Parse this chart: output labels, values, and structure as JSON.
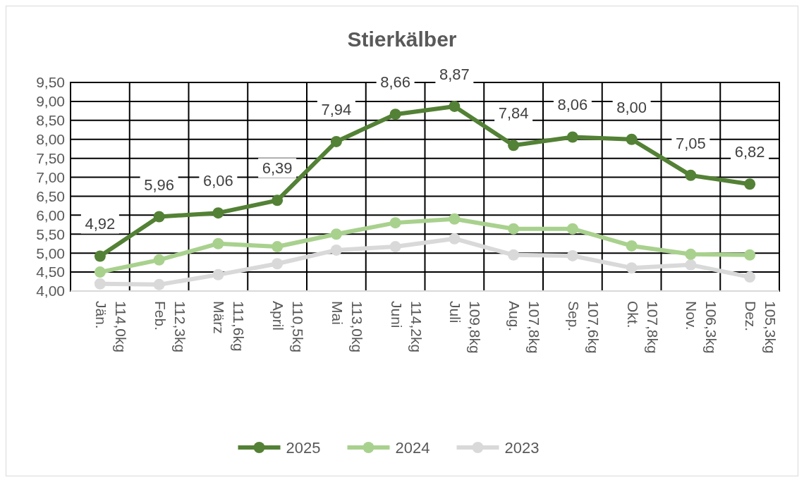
{
  "chart_data": {
    "type": "line",
    "title": "Stierkälber",
    "categories": [
      "Jän. 114,0kg",
      "Feb. 112,3kg",
      "März 111,6kg",
      "April 110,5kg",
      "Mai 113,0kg",
      "Juni 114,2kg",
      "Juli 109,8kg",
      "Aug. 107,8kg",
      "Sep. 107,6kg",
      "Okt. 107,8kg",
      "Nov. 106,3kg",
      "Dez. 105,3kg"
    ],
    "series": [
      {
        "name": "2025",
        "color": "#538135",
        "values": [
          4.92,
          5.96,
          6.06,
          6.39,
          7.94,
          8.66,
          8.87,
          7.84,
          8.06,
          8.0,
          7.05,
          6.82
        ],
        "value_labels": [
          "4,92",
          "5,96",
          "6,06",
          "6,39",
          "7,94",
          "8,66",
          "8,87",
          "7,84",
          "8,06",
          "8,00",
          "7,05",
          "6,82"
        ]
      },
      {
        "name": "2024",
        "color": "#a9d18e",
        "values": [
          4.5,
          4.82,
          5.25,
          5.17,
          5.5,
          5.8,
          5.9,
          5.64,
          5.64,
          5.19,
          4.97,
          4.95
        ]
      },
      {
        "name": "2023",
        "color": "#d9d9d9",
        "values": [
          4.19,
          4.17,
          4.43,
          4.72,
          5.08,
          5.17,
          5.38,
          4.95,
          4.93,
          4.61,
          4.69,
          4.37
        ]
      }
    ],
    "ylim": [
      4.0,
      9.5
    ],
    "yticks": [
      {
        "value": 4.0,
        "label": "4,00"
      },
      {
        "value": 4.5,
        "label": "4,50"
      },
      {
        "value": 5.0,
        "label": "5,00"
      },
      {
        "value": 5.5,
        "label": "5,50"
      },
      {
        "value": 6.0,
        "label": "6,00"
      },
      {
        "value": 6.5,
        "label": "6,50"
      },
      {
        "value": 7.0,
        "label": "7,00"
      },
      {
        "value": 7.5,
        "label": "7,50"
      },
      {
        "value": 8.0,
        "label": "8,00"
      },
      {
        "value": 8.5,
        "label": "8,50"
      },
      {
        "value": 9.0,
        "label": "9,00"
      },
      {
        "value": 9.5,
        "label": "9,50"
      }
    ],
    "grid": true,
    "legend": "bottom",
    "marker": "circle",
    "line_style": "solid"
  }
}
